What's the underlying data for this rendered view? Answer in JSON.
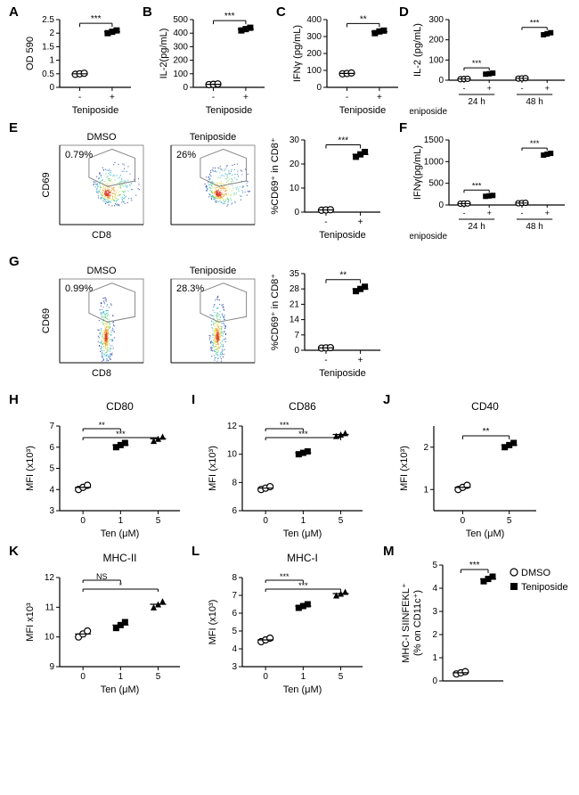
{
  "global": {
    "bg_color": "#ffffff",
    "axis_color": "#000000",
    "tick_fontsize": 10,
    "axis_label_fontsize": 11,
    "panel_label_fontsize": 15,
    "sig_fontsize": 11,
    "marker_open_stroke": "#000000",
    "marker_open_fill": "#ffffff",
    "marker_closed_fill": "#000000"
  },
  "panelA": {
    "label": "A",
    "type": "scatter",
    "ylabel": "OD 590",
    "xlabel": "Teniposide",
    "ylim": [
      0,
      2.5
    ],
    "ytick_step": 0.5,
    "categories": [
      "-",
      "+"
    ],
    "values": [
      [
        0.48,
        0.5,
        0.52
      ],
      [
        2.0,
        2.05,
        2.1
      ]
    ],
    "markers": [
      "open-circle",
      "closed-square"
    ],
    "sig": "***"
  },
  "panelB": {
    "label": "B",
    "type": "scatter",
    "ylabel": "IL-2(pg/mL)",
    "xlabel": "Teniposide",
    "ylim": [
      0,
      500
    ],
    "ytick_step": 100,
    "categories": [
      "-",
      "+"
    ],
    "values": [
      [
        20,
        22,
        25
      ],
      [
        420,
        430,
        440
      ]
    ],
    "markers": [
      "open-circle",
      "closed-square"
    ],
    "sig": "***"
  },
  "panelC": {
    "label": "C",
    "type": "scatter",
    "ylabel": "IFNγ (pg/mL)",
    "xlabel": "Teniposide",
    "ylim": [
      0,
      400
    ],
    "ytick_step": 100,
    "categories": [
      "-",
      "+"
    ],
    "values": [
      [
        80,
        82,
        85
      ],
      [
        320,
        330,
        335
      ]
    ],
    "markers": [
      "open-circle",
      "closed-square"
    ],
    "sig": "**"
  },
  "panelD": {
    "label": "D",
    "type": "scatter-grouped",
    "ylabel": "IL-2 (pg/mL)",
    "ylim": [
      0,
      300
    ],
    "ytick_step": 100,
    "groups": [
      "24 h",
      "48 h"
    ],
    "categories": [
      "-",
      "+"
    ],
    "xlabel": "Teniposide",
    "values": {
      "24 h": [
        [
          5,
          6,
          7
        ],
        [
          30,
          32,
          35
        ]
      ],
      "48 h": [
        [
          8,
          9,
          10
        ],
        [
          225,
          230,
          235
        ]
      ]
    },
    "markers": [
      "open-circle",
      "closed-square"
    ],
    "sig": {
      "24 h": "***",
      "48 h": "***"
    }
  },
  "panelE": {
    "label": "E",
    "type": "flow+scatter",
    "xlabel_flow": "CD8",
    "ylabel_flow": "CD69",
    "flow_titles": [
      "DMSO",
      "Teniposide"
    ],
    "flow_pct": [
      "0.79%",
      "26%"
    ],
    "ylabel": "%CD69⁺ in CD8⁺",
    "xlabel": "Teniposide",
    "ylim": [
      0,
      30
    ],
    "ytick_step": 10,
    "categories": [
      "-",
      "+"
    ],
    "values": [
      [
        0.8,
        0.9,
        1.0
      ],
      [
        23,
        24,
        25
      ]
    ],
    "markers": [
      "open-circle",
      "closed-square"
    ],
    "sig": "***"
  },
  "panelF": {
    "label": "F",
    "type": "scatter-grouped",
    "ylabel": "IFNγ(pg/mL)",
    "ylim": [
      0,
      1500
    ],
    "ytick_step": 500,
    "groups": [
      "24 h",
      "48 h"
    ],
    "categories": [
      "-",
      "+"
    ],
    "xlabel": "Teniposide",
    "values": {
      "24 h": [
        [
          30,
          32,
          35
        ],
        [
          200,
          210,
          220
        ]
      ],
      "48 h": [
        [
          40,
          45,
          50
        ],
        [
          1150,
          1170,
          1190
        ]
      ]
    },
    "markers": [
      "open-circle",
      "closed-square"
    ],
    "sig": {
      "24 h": "***",
      "48 h": "***"
    }
  },
  "panelG": {
    "label": "G",
    "type": "flow+scatter",
    "xlabel_flow": "CD8",
    "ylabel_flow": "CD69",
    "flow_titles": [
      "DMSO",
      "Teniposide"
    ],
    "flow_pct": [
      "0.99%",
      "28.3%"
    ],
    "ylabel": "%CD69⁺ in CD8⁺",
    "xlabel": "Teniposide",
    "ylim": [
      0,
      35
    ],
    "yticks": [
      0,
      7,
      14,
      21,
      28,
      35
    ],
    "categories": [
      "-",
      "+"
    ],
    "values": [
      [
        1.0,
        1.1,
        1.2
      ],
      [
        27,
        28,
        29
      ]
    ],
    "markers": [
      "open-circle",
      "closed-square"
    ],
    "sig": "**"
  },
  "panelH": {
    "label": "H",
    "title": "CD80",
    "type": "scatter",
    "ylabel": "MFI (x10³)",
    "xlabel": "Ten (μM)",
    "ylim": [
      3,
      7
    ],
    "yticks": [
      3,
      4,
      5,
      6,
      7
    ],
    "categories": [
      "0",
      "1",
      "5"
    ],
    "values": [
      [
        4.0,
        4.1,
        4.2
      ],
      [
        6.0,
        6.1,
        6.2
      ],
      [
        6.3,
        6.4,
        6.5
      ]
    ],
    "markers": [
      "open-circle",
      "closed-square",
      "closed-triangle"
    ],
    "sig": [
      "**",
      "***"
    ]
  },
  "panelI": {
    "label": "I",
    "title": "CD86",
    "type": "scatter",
    "ylabel": "MFI (x10³)",
    "xlabel": "Ten (μM)",
    "ylim": [
      6,
      12
    ],
    "yticks": [
      6,
      8,
      10,
      12
    ],
    "categories": [
      "0",
      "1",
      "5"
    ],
    "values": [
      [
        7.5,
        7.6,
        7.7
      ],
      [
        10.0,
        10.1,
        10.2
      ],
      [
        11.3,
        11.4,
        11.5
      ]
    ],
    "markers": [
      "open-circle",
      "closed-square",
      "closed-triangle"
    ],
    "sig": [
      "***",
      "***"
    ]
  },
  "panelJ": {
    "label": "J",
    "title": "CD40",
    "type": "scatter",
    "ylabel": "MFI (x10³)",
    "xlabel": "Ten (μM)",
    "ylim": [
      0.5,
      2.5
    ],
    "yticks": [
      1,
      2
    ],
    "categories": [
      "0",
      "5"
    ],
    "values": [
      [
        1.0,
        1.05,
        1.1
      ],
      [
        2.0,
        2.05,
        2.1
      ]
    ],
    "markers": [
      "open-circle",
      "closed-square"
    ],
    "sig": "**"
  },
  "panelK": {
    "label": "K",
    "title": "MHC-II",
    "type": "scatter",
    "ylabel": "MFI x10³",
    "xlabel": "Ten (μM)",
    "ylim": [
      9,
      12
    ],
    "yticks": [
      9,
      10,
      11,
      12
    ],
    "categories": [
      "0",
      "1",
      "5"
    ],
    "values": [
      [
        10.0,
        10.1,
        10.2
      ],
      [
        10.3,
        10.4,
        10.5
      ],
      [
        11.0,
        11.1,
        11.2
      ]
    ],
    "markers": [
      "open-circle",
      "closed-square",
      "closed-triangle"
    ],
    "sig": [
      "NS",
      "*"
    ]
  },
  "panelL": {
    "label": "L",
    "title": "MHC-I",
    "type": "scatter",
    "ylabel": "MFI (x10³)",
    "xlabel": "Ten (μM)",
    "ylim": [
      3,
      8
    ],
    "yticks": [
      3,
      4,
      5,
      6,
      7,
      8
    ],
    "categories": [
      "0",
      "1",
      "5"
    ],
    "values": [
      [
        4.4,
        4.5,
        4.6
      ],
      [
        6.3,
        6.4,
        6.5
      ],
      [
        7.0,
        7.1,
        7.2
      ]
    ],
    "markers": [
      "open-circle",
      "closed-square",
      "closed-triangle"
    ],
    "sig": [
      "***",
      "***"
    ]
  },
  "panelM": {
    "label": "M",
    "type": "scatter",
    "ylabel": "MHC-I SIINFEKL⁺\n(% on CD11c⁺)",
    "ylim": [
      0,
      5
    ],
    "ytick_step": 1,
    "categories": [
      "DMSO",
      "Teniposide"
    ],
    "legend": [
      "DMSO",
      "Teniposide"
    ],
    "values": [
      [
        0.3,
        0.35,
        0.4
      ],
      [
        4.3,
        4.4,
        4.5
      ]
    ],
    "markers": [
      "open-circle",
      "closed-square"
    ],
    "sig": "***"
  }
}
